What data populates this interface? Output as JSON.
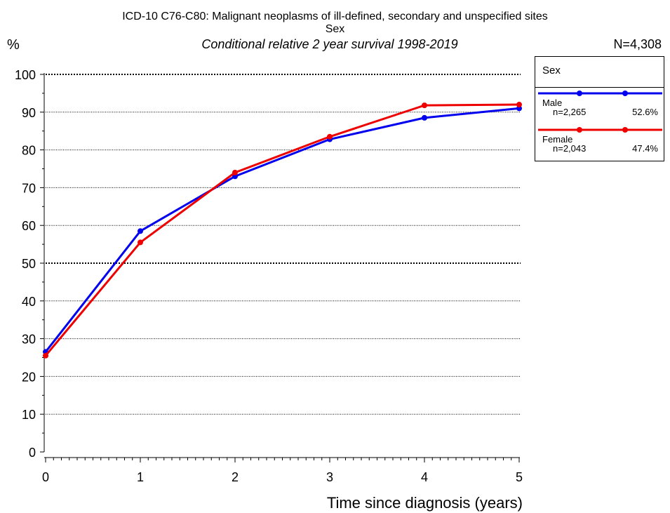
{
  "header": {
    "title": "ICD-10 C76-C80: Malignant neoplasms of ill-defined, secondary and unspecified sites",
    "subtitle": "Sex",
    "subtitle2": "Conditional relative 2 year survival 1998-2019",
    "y_unit": "%",
    "n_total": "N=4,308"
  },
  "legend": {
    "title": "Sex",
    "entries": [
      {
        "name": "Male",
        "count": "n=2,265",
        "pct": "52.6%",
        "color": "#0000ee"
      },
      {
        "name": "Female",
        "count": "n=2,043",
        "pct": "47.4%",
        "color": "#ee0000"
      }
    ]
  },
  "chart_data": {
    "type": "line",
    "title": "ICD-10 C76-C80: Malignant neoplasms of ill-defined, secondary and unspecified sites",
    "xlabel": "Time since diagnosis (years)",
    "ylabel": "%",
    "xlim": [
      0,
      5
    ],
    "ylim": [
      0,
      100
    ],
    "x_ticks": [
      "0",
      "1",
      "2",
      "3",
      "4",
      "5"
    ],
    "y_ticks": [
      "0",
      "10",
      "20",
      "30",
      "40",
      "50",
      "60",
      "70",
      "80",
      "90",
      "100"
    ],
    "grid": "horizontal dotted",
    "legend_position": "top-right",
    "x": [
      0,
      1,
      2,
      3,
      4,
      5
    ],
    "series": [
      {
        "name": "Male",
        "color": "#0000ee",
        "values": [
          26.5,
          58.5,
          73,
          82.8,
          88.5,
          91
        ]
      },
      {
        "name": "Female",
        "color": "#ee0000",
        "values": [
          25.5,
          55.5,
          74,
          83.5,
          91.8,
          92
        ]
      }
    ]
  }
}
